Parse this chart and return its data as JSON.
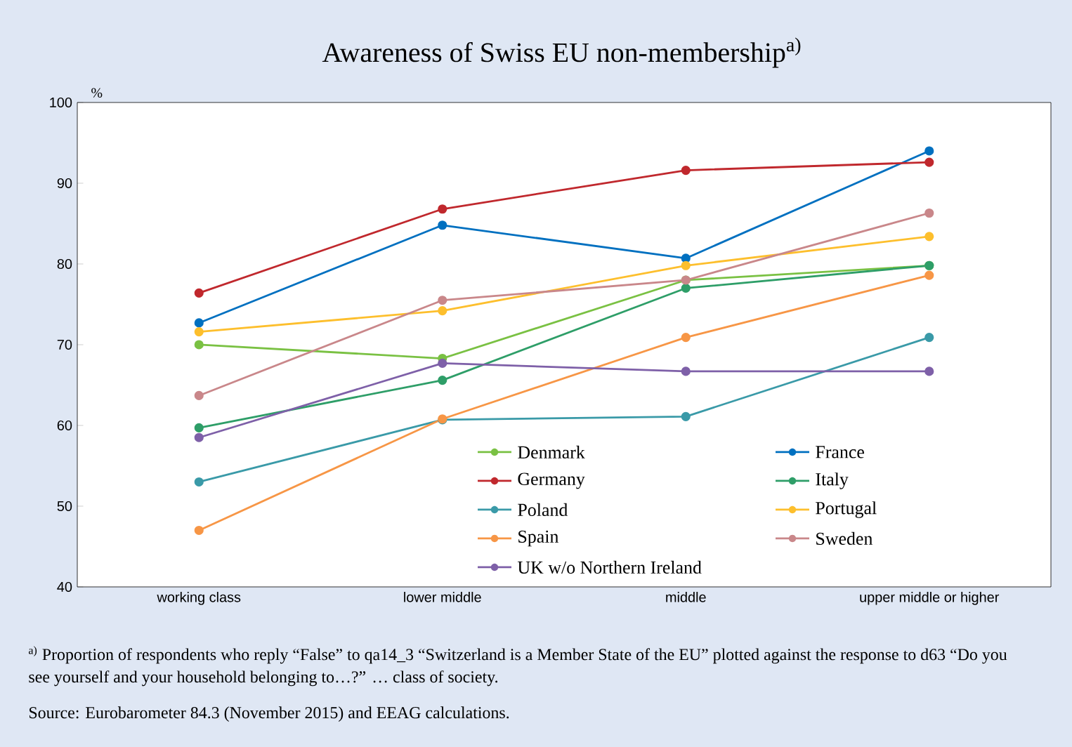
{
  "chart_data": {
    "type": "line",
    "title": "Awareness of Swiss EU non-membership$^{a)}$",
    "ylabel": "%",
    "categories": [
      "working class",
      "lower middle",
      "middle",
      "upper middle or higher"
    ],
    "series": [
      {
        "name": "Denmark",
        "color": "#7ac143",
        "values": [
          70,
          68.3,
          78,
          79.8
        ]
      },
      {
        "name": "France",
        "color": "#0070c0",
        "values": [
          72.7,
          84.8,
          80.7,
          94
        ]
      },
      {
        "name": "Germany",
        "color": "#c0282d",
        "values": [
          76.4,
          86.8,
          91.6,
          92.6
        ]
      },
      {
        "name": "Italy",
        "color": "#2e9e68",
        "values": [
          59.7,
          65.6,
          77,
          79.8
        ]
      },
      {
        "name": "Poland",
        "color": "#3a9aa8",
        "values": [
          53,
          60.7,
          61.1,
          70.9
        ]
      },
      {
        "name": "Portugal",
        "color": "#fdbf2d",
        "values": [
          71.6,
          74.2,
          79.8,
          83.4
        ]
      },
      {
        "name": "Spain",
        "color": "#f79646",
        "values": [
          47,
          60.8,
          70.9,
          78.6
        ]
      },
      {
        "name": "Sweden",
        "color": "#c9878a",
        "values": [
          63.7,
          75.5,
          78,
          86.3
        ]
      },
      {
        "name": "UK w/o Northern Ireland",
        "color": "#7e60a8",
        "values": [
          58.5,
          67.7,
          66.7,
          66.7
        ]
      }
    ],
    "ylim": [
      40,
      100
    ],
    "yticks": [
      40,
      50,
      60,
      70,
      80,
      90,
      100
    ],
    "grid": false,
    "legend": "bottom right",
    "marker": "circle",
    "line_style": "solid",
    "annotations": [
      "$^{a)}$ Proportion of respondents who reply “False” to qa14_3 “Switzerland is a Member State of the EU” plotted against the response to d63 “Do you see yourself and your household belonging to…?” … class of society.",
      "Source: Eurobarometer 84.3 (November 2015) and EEAG calculations."
    ]
  }
}
